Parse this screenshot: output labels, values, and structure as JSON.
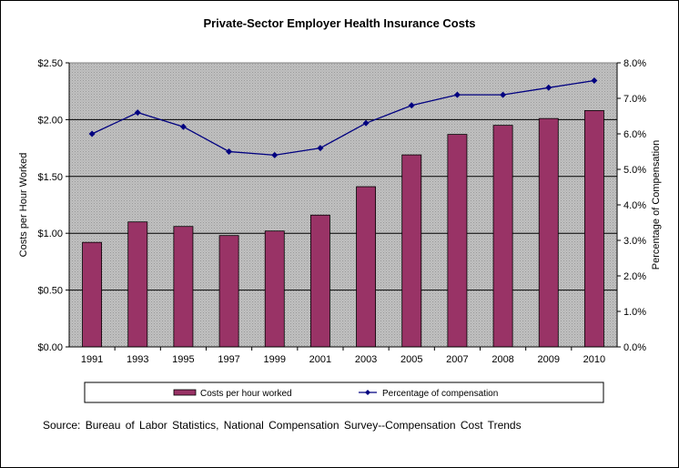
{
  "chart_data": {
    "type": "bar",
    "title": "Private-Sector Employer Health Insurance Costs",
    "categories": [
      "1991",
      "1993",
      "1995",
      "1997",
      "1999",
      "2001",
      "2003",
      "2005",
      "2007",
      "2008",
      "2009",
      "2010"
    ],
    "series": [
      {
        "name": "Costs per hour worked",
        "type": "bar",
        "axis": "left",
        "color": "#993366",
        "values": [
          0.92,
          1.1,
          1.06,
          0.98,
          1.02,
          1.16,
          1.41,
          1.69,
          1.87,
          1.95,
          2.01,
          2.08
        ]
      },
      {
        "name": "Percentage of compensation",
        "type": "line",
        "axis": "right",
        "color": "#000080",
        "values": [
          6.0,
          6.6,
          6.2,
          5.5,
          5.4,
          5.6,
          6.3,
          6.8,
          7.1,
          7.1,
          7.3,
          7.5
        ]
      }
    ],
    "ylabel": "Costs per Hour Worked",
    "y2label": "Percentage of Compensation",
    "ylim": [
      0,
      2.5
    ],
    "y2lim": [
      0,
      8
    ],
    "yticks": [
      "$0.00",
      "$0.50",
      "$1.00",
      "$1.50",
      "$2.00",
      "$2.50"
    ],
    "y2ticks": [
      "0.0%",
      "1.0%",
      "2.0%",
      "3.0%",
      "4.0%",
      "5.0%",
      "6.0%",
      "7.0%",
      "8.0%"
    ],
    "plot_background": "#c0c0c0",
    "legend_position": "bottom"
  },
  "source": "Source:  Bureau of Labor Statistics, National Compensation  Survey--Compensation  Cost Trends"
}
